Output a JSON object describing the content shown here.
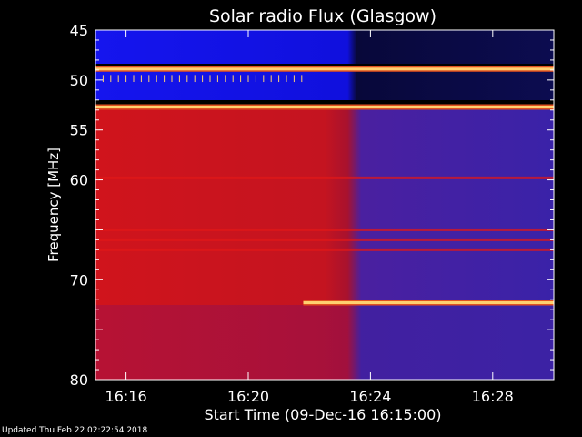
{
  "chart_data": {
    "type": "heatmap",
    "title": "Solar radio Flux (Glasgow)",
    "xlabel": "Start Time (09-Dec-16 16:15:00)",
    "ylabel": "Frequency [MHz]",
    "x_ticks": [
      "16:16",
      "16:20",
      "16:24",
      "16:28"
    ],
    "x_tick_minutes": [
      1,
      5,
      9,
      13
    ],
    "xlim_minutes": [
      0,
      15
    ],
    "y_ticks": [
      45,
      50,
      55,
      60,
      65,
      70,
      75,
      80
    ],
    "y_tick_labels": [
      "45",
      "50",
      "55",
      "60",
      "",
      "70",
      "",
      "80"
    ],
    "ylim": [
      45,
      80
    ],
    "y_inverted": true,
    "transition_minute": 6.8,
    "bright_bands_mhz": [
      48.9,
      52.7,
      72.3
    ],
    "strong_red_bands_mhz": [
      59.8,
      65.0,
      66.0,
      67.0
    ],
    "colors": {
      "background": "#000000",
      "low": "#1010e0",
      "low_dark": "#10107a",
      "mid": "#b01030",
      "high": "#e01818",
      "peak": "#ffd070"
    }
  },
  "footer": {
    "updated": "Updated Thu Feb 22 02:22:54 2018"
  }
}
